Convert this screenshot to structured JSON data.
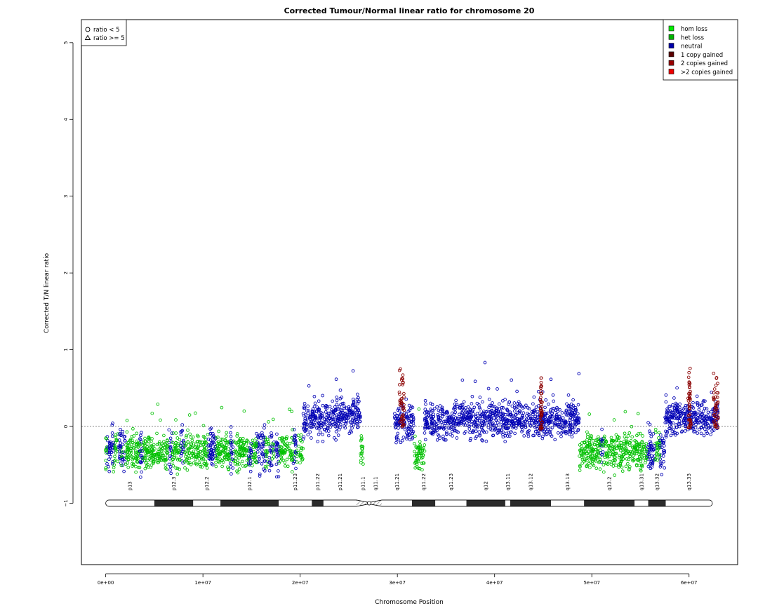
{
  "chart_data": {
    "type": "scatter",
    "title": "Corrected Tumour/Normal linear ratio for chromosome  20",
    "xlabel": "Chromosome Position",
    "ylabel": "Corrected T/N linear ratio",
    "xlim": [
      -2500000,
      65000000
    ],
    "ylim": [
      -1.8,
      5.3
    ],
    "x_ticks": [
      0,
      10000000,
      20000000,
      30000000,
      40000000,
      50000000,
      60000000
    ],
    "x_tick_labels": [
      "0e+00",
      "1e+07",
      "2e+07",
      "3e+07",
      "4e+07",
      "5e+07",
      "6e+07"
    ],
    "y_ticks": [
      -1,
      0,
      1,
      2,
      3,
      4,
      5
    ],
    "y_tick_labels": [
      "−1",
      "0",
      "1",
      "2",
      "3",
      "4",
      "5"
    ],
    "reference_line_y": 0,
    "shape_legend": {
      "placement": "top-left",
      "entries": [
        {
          "symbol": "circle",
          "label": "ratio < 5"
        },
        {
          "symbol": "triangle",
          "label": "ratio >= 5"
        }
      ]
    },
    "legend": {
      "placement": "top-right",
      "entries": [
        {
          "label": "hom loss",
          "color": "#00ee00"
        },
        {
          "label": "het loss",
          "color": "#00b300"
        },
        {
          "label": "neutral",
          "color": "#0000aa"
        },
        {
          "label": "1 copy gained",
          "color": "#5c0000"
        },
        {
          "label": "2 copies gained",
          "color": "#990000"
        },
        {
          "label": ">2 copies gained",
          "color": "#ee0000"
        }
      ]
    },
    "series_colors": {
      "het_loss": "#00c000",
      "neutral": "#0000b4",
      "gain": "#8b0000"
    },
    "segments": [
      {
        "state": "het_loss",
        "start": 0,
        "end": 20300000,
        "mean": -0.33
      },
      {
        "state": "neutral",
        "start": 20300000,
        "end": 26200000,
        "mean": 0.07
      },
      {
        "state": "het_loss",
        "start": 26200000,
        "end": 26500000,
        "mean": -0.3
      },
      {
        "state": "neutral",
        "start": 29700000,
        "end": 31700000,
        "mean": 0.05
      },
      {
        "state": "het_loss",
        "start": 31700000,
        "end": 32800000,
        "mean": -0.33
      },
      {
        "state": "neutral",
        "start": 32800000,
        "end": 48700000,
        "mean": 0.08
      },
      {
        "state": "het_loss",
        "start": 48700000,
        "end": 57500000,
        "mean": -0.32
      },
      {
        "state": "neutral",
        "start": 57500000,
        "end": 63000000,
        "mean": 0.12
      }
    ],
    "neutral_bands_in_loss": [
      {
        "start": 100000,
        "end": 800000
      },
      {
        "start": 1300000,
        "end": 1600000
      },
      {
        "start": 1700000,
        "end": 2000000
      },
      {
        "start": 3500000,
        "end": 3800000
      },
      {
        "start": 6400000,
        "end": 6800000
      },
      {
        "start": 7700000,
        "end": 8100000
      },
      {
        "start": 10500000,
        "end": 11300000
      },
      {
        "start": 12800000,
        "end": 13100000
      },
      {
        "start": 14700000,
        "end": 15000000
      },
      {
        "start": 15500000,
        "end": 16400000
      },
      {
        "start": 16800000,
        "end": 17100000
      },
      {
        "start": 17300000,
        "end": 17800000
      },
      {
        "start": 19300000,
        "end": 19600000
      },
      {
        "start": 50900000,
        "end": 51200000
      },
      {
        "start": 55700000,
        "end": 56500000
      },
      {
        "start": 57000000,
        "end": 57600000
      }
    ],
    "gain_spikes": [
      {
        "start": 30200000,
        "end": 30700000,
        "max": 0.9
      },
      {
        "start": 44700000,
        "end": 44900000,
        "max": 0.78
      },
      {
        "start": 59900000,
        "end": 60200000,
        "max": 0.95
      },
      {
        "start": 62500000,
        "end": 63000000,
        "max": 0.82
      }
    ],
    "ideogram": {
      "y": -1,
      "bands": [
        {
          "name": "p13",
          "start": 0,
          "end": 5000000,
          "stain": "gneg"
        },
        {
          "name": "p12.3",
          "start": 5000000,
          "end": 9000000,
          "stain": "gpos"
        },
        {
          "name": "p12.2",
          "start": 9000000,
          "end": 11800000,
          "stain": "gneg"
        },
        {
          "name": "p12.1",
          "start": 11800000,
          "end": 17800000,
          "stain": "gpos"
        },
        {
          "name": "p11.23",
          "start": 17800000,
          "end": 21200000,
          "stain": "gneg"
        },
        {
          "name": "p11.22",
          "start": 21200000,
          "end": 22400000,
          "stain": "gpos"
        },
        {
          "name": "p11.21",
          "start": 22400000,
          "end": 25800000,
          "stain": "gneg"
        },
        {
          "name": "p11.1",
          "start": 25800000,
          "end": 27100000,
          "stain": "acen"
        },
        {
          "name": "q11.1",
          "start": 27100000,
          "end": 28400000,
          "stain": "acen"
        },
        {
          "name": "q11.21",
          "start": 28400000,
          "end": 31500000,
          "stain": "gneg"
        },
        {
          "name": "q11.22",
          "start": 31500000,
          "end": 33900000,
          "stain": "gpos"
        },
        {
          "name": "q11.23",
          "start": 33900000,
          "end": 37100000,
          "stain": "gneg"
        },
        {
          "name": "q12",
          "start": 37100000,
          "end": 41100000,
          "stain": "gpos"
        },
        {
          "name": "q13.11",
          "start": 41100000,
          "end": 41600000,
          "stain": "gneg"
        },
        {
          "name": "q13.12",
          "start": 41600000,
          "end": 45800000,
          "stain": "gpos"
        },
        {
          "name": "q13.13",
          "start": 45800000,
          "end": 49200000,
          "stain": "gneg"
        },
        {
          "name": "q13.2",
          "start": 49200000,
          "end": 54400000,
          "stain": "gpos"
        },
        {
          "name": "q13.31",
          "start": 54400000,
          "end": 55800000,
          "stain": "gneg"
        },
        {
          "name": "q13.32",
          "start": 55800000,
          "end": 57600000,
          "stain": "gpos"
        },
        {
          "name": "q13.33",
          "start": 57600000,
          "end": 62400000,
          "stain": "gneg"
        }
      ]
    }
  }
}
